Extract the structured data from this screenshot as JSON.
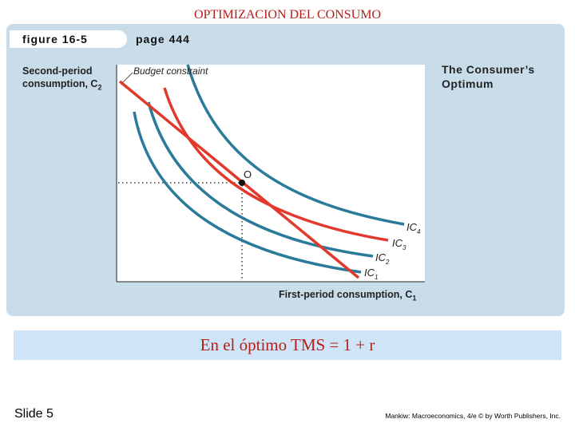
{
  "slide": {
    "title": "OPTIMIZACION DEL CONSUMO",
    "slide_number": "Slide 5",
    "credit": "Mankiw: Macroeconomics, 4/e © by Worth Publishers, Inc."
  },
  "figure": {
    "label": "figure 16-5",
    "page": "page 444",
    "side_title": "The Consumer’s Optimum",
    "y_axis_label": "Second-period consumption, C",
    "y_axis_subscript": "2",
    "x_axis_label": "First-period consumption, C",
    "x_axis_subscript": "1",
    "budget_label": "Budget constraint",
    "optimum_label": "O",
    "curves": [
      {
        "name": "IC",
        "sub": "4",
        "color": "#2a7a9a"
      },
      {
        "name": "IC",
        "sub": "3",
        "color": "#e13a2c"
      },
      {
        "name": "IC",
        "sub": "2",
        "color": "#2a7a9a"
      },
      {
        "name": "IC",
        "sub": "1",
        "color": "#2a7a9a"
      }
    ],
    "budget_color": "#e13a2c"
  },
  "result": {
    "text": "En el óptimo TMS = 1 + r"
  }
}
